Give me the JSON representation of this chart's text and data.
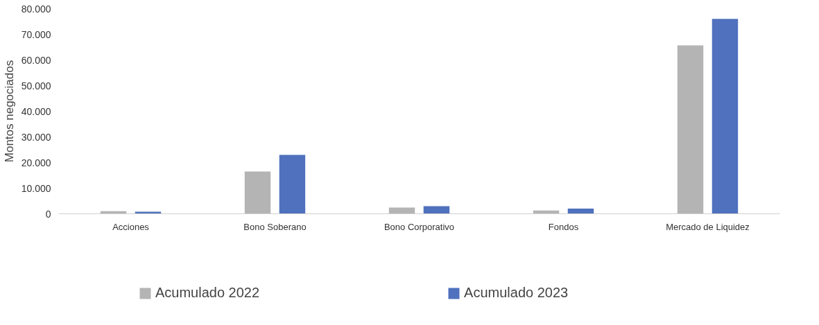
{
  "chart_data": {
    "type": "bar",
    "ylabel": "Montos negociados",
    "categories": [
      "Acciones",
      "Bono Soberano",
      "Bono Corporativo",
      "Fondos",
      "Mercado de Liquidez"
    ],
    "series": [
      {
        "name": "Acumulado 2022",
        "color": "#b4b4b4",
        "values": [
          1000,
          16500,
          2400,
          1300,
          65700
        ]
      },
      {
        "name": "Acumulado 2023",
        "color": "#4f71be",
        "values": [
          800,
          23000,
          3000,
          2000,
          76000
        ]
      }
    ],
    "ylim": [
      0,
      80000
    ],
    "yticks": [
      {
        "value": 0,
        "label": "0"
      },
      {
        "value": 10000,
        "label": "10.000"
      },
      {
        "value": 20000,
        "label": "20.000"
      },
      {
        "value": 30000,
        "label": "30.000"
      },
      {
        "value": 40000,
        "label": "40.000"
      },
      {
        "value": 50000,
        "label": "50.000"
      },
      {
        "value": 60000,
        "label": "60.000"
      },
      {
        "value": 70000,
        "label": "70.000"
      },
      {
        "value": 80000,
        "label": "80.000"
      }
    ],
    "grid": false,
    "legend": "bottom"
  }
}
